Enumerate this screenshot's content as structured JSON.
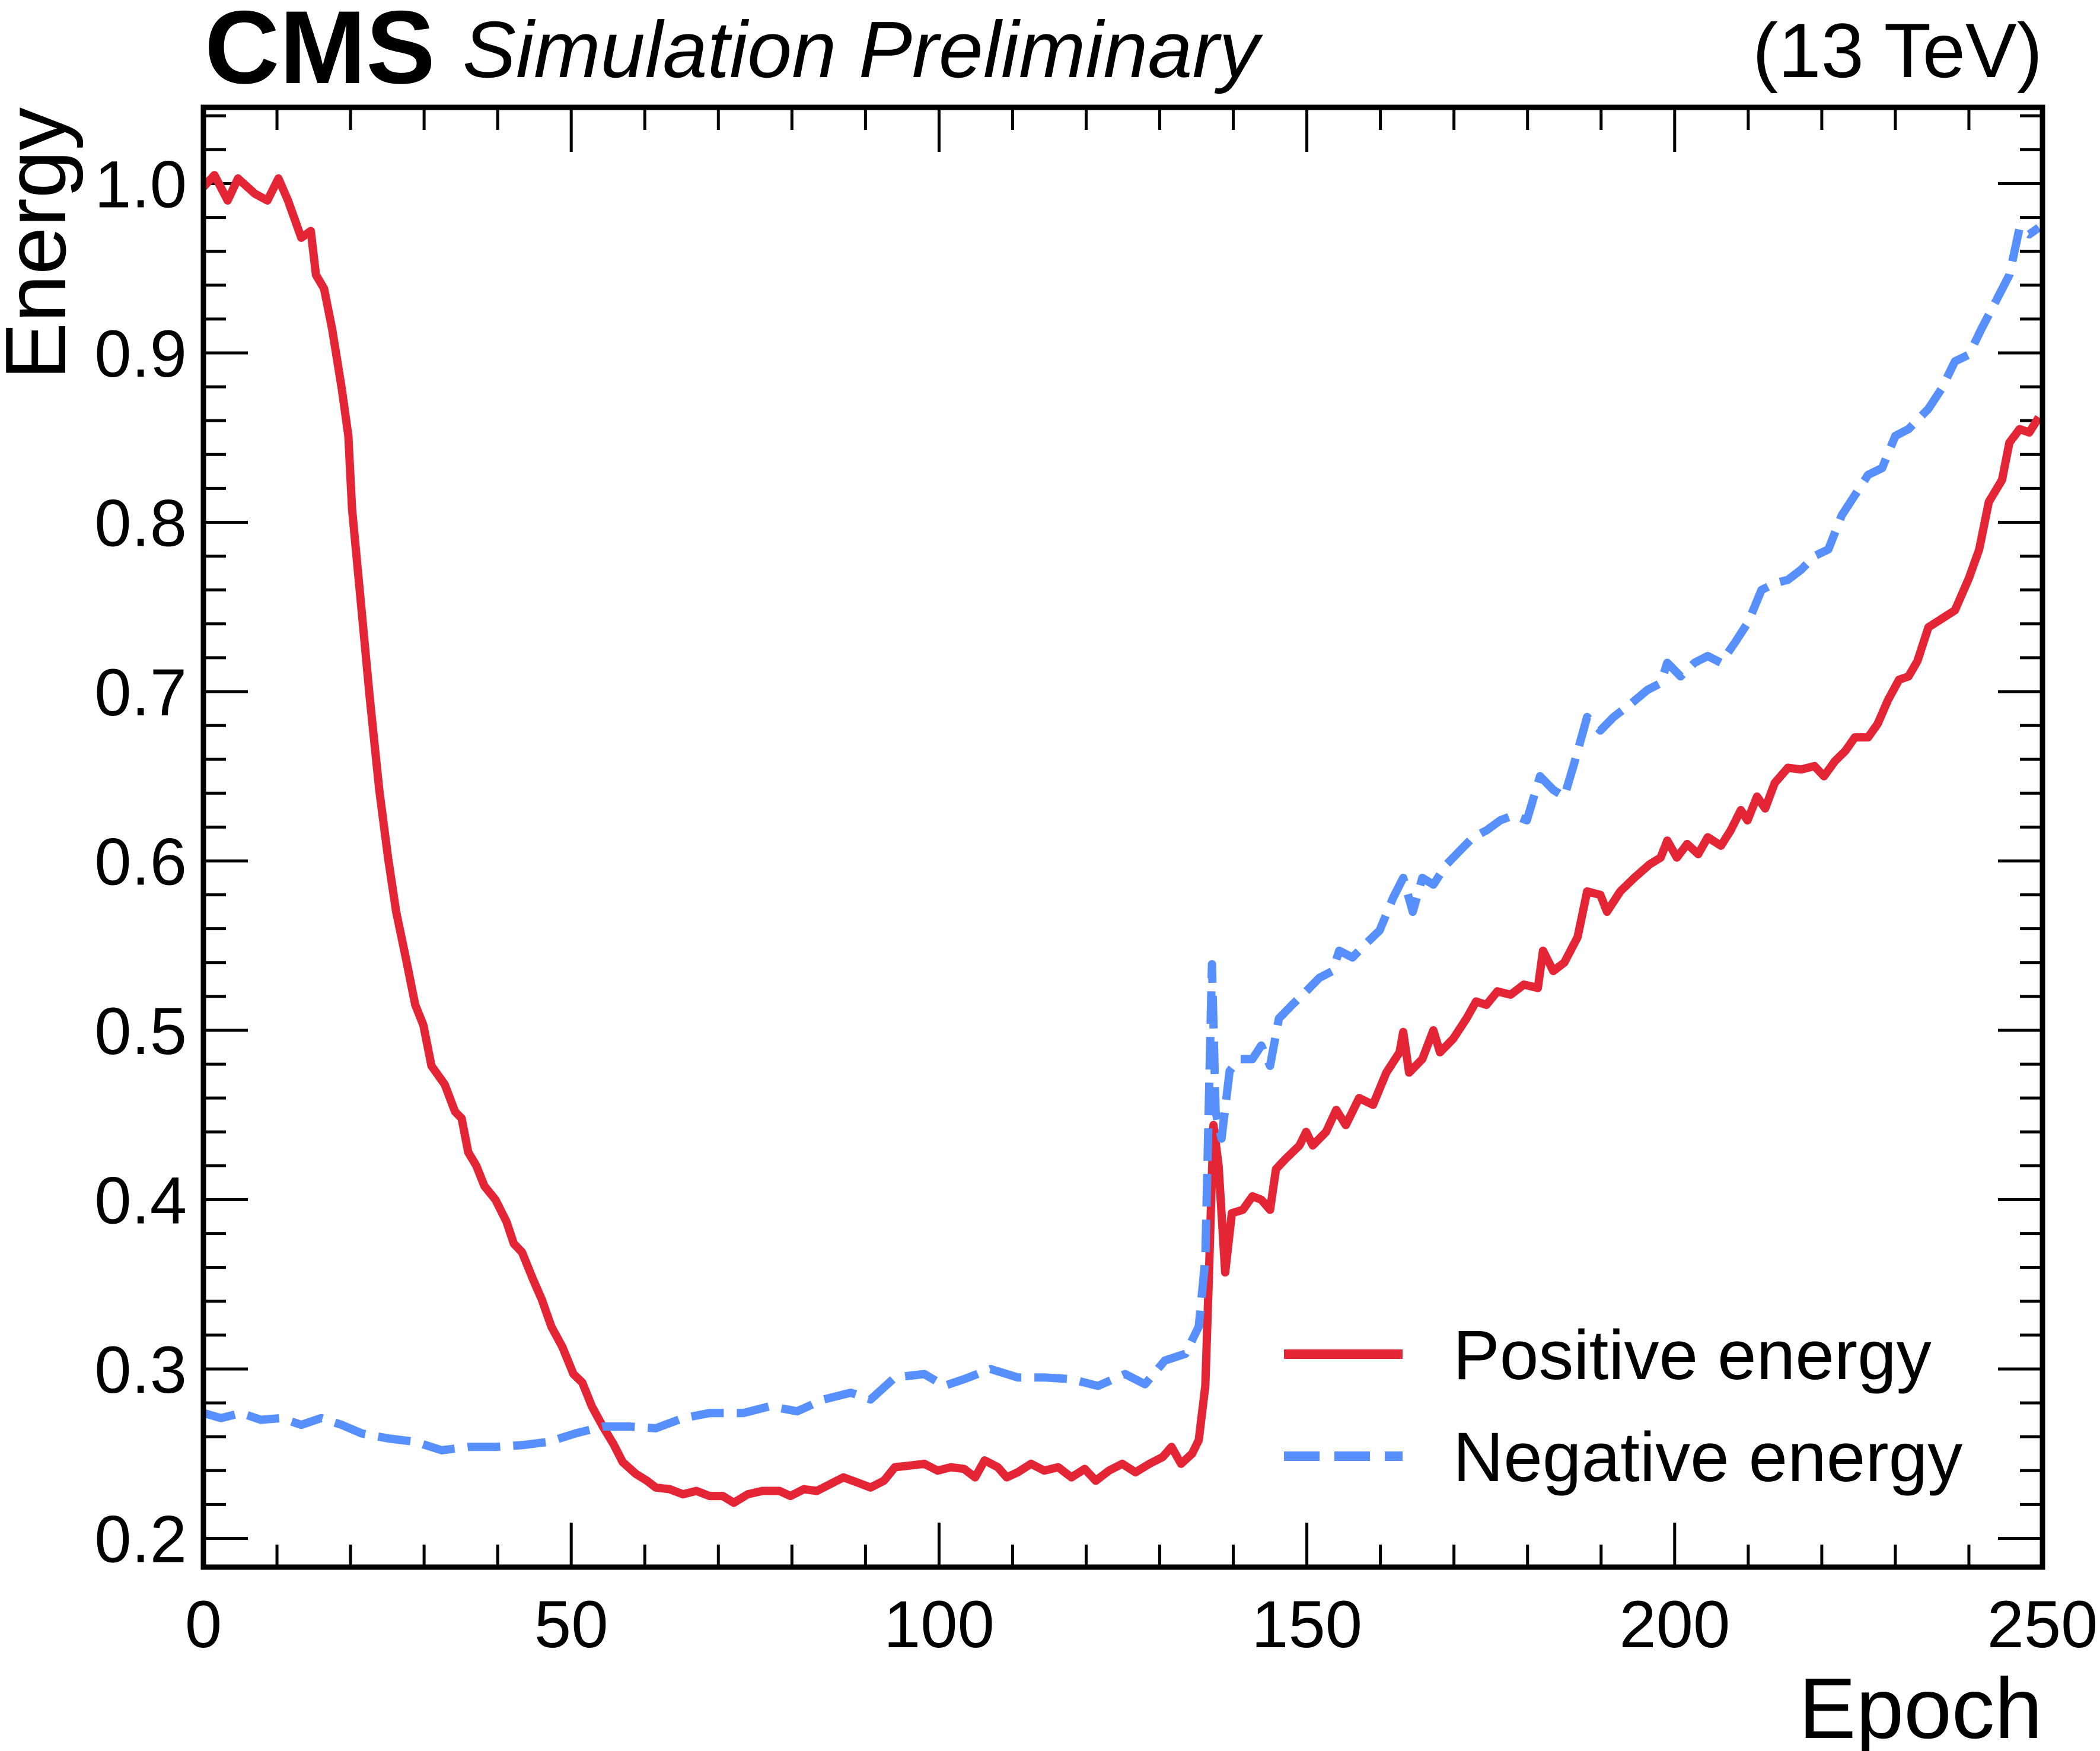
{
  "chart_data": {
    "type": "line",
    "header": {
      "experiment": "CMS",
      "label": "Simulation Preliminary",
      "energy": "(13 TeV)"
    },
    "xlabel": "Epoch",
    "ylabel": "Energy",
    "xlim": [
      0,
      250
    ],
    "ylim": [
      0.183,
      1.045
    ],
    "xticks": [
      0,
      50,
      100,
      150,
      200,
      250
    ],
    "xtick_labels": [
      "0",
      "50",
      "100",
      "150",
      "200",
      "250"
    ],
    "yticks": [
      0.2,
      0.3,
      0.4,
      0.5,
      0.6,
      0.7,
      0.8,
      0.9,
      1.0
    ],
    "ytick_labels": [
      "0.2",
      "0.3",
      "0.4",
      "0.5",
      "0.6",
      "0.7",
      "0.8",
      "0.9",
      "1.0"
    ],
    "grid": false,
    "legend_position": "bottom-right",
    "series": [
      {
        "name": "Positive energy",
        "color": "#e42536",
        "style": "solid",
        "x": [
          0,
          1.5,
          3.3,
          4.7,
          7,
          8.7,
          10.2,
          11.5,
          13.3,
          14.6,
          15.3,
          16.4,
          17.5,
          18.8,
          19.7,
          20.2,
          21.5,
          22.6,
          23.9,
          25.1,
          26.2,
          27.5,
          28.8,
          29.9,
          31,
          32.8,
          34.2,
          35.1,
          36,
          37.1,
          38.2,
          39.7,
          41.2,
          42.2,
          43.3,
          44.8,
          46,
          47.3,
          48.8,
          50.3,
          51.5,
          52.8,
          54.3,
          55.7,
          57,
          58.8,
          60.3,
          61.5,
          63.4,
          65.2,
          67,
          68.8,
          70.6,
          72.1,
          74,
          76,
          78.3,
          79.8,
          81.6,
          83.4,
          85.2,
          87,
          88.9,
          90.7,
          92.5,
          94,
          96.1,
          98,
          99.8,
          101.6,
          103.4,
          104.9,
          106.2,
          108,
          109.2,
          110.7,
          112.5,
          114.3,
          116.2,
          118,
          119.8,
          121.3,
          123.1,
          124.9,
          126.7,
          128.6,
          130.4,
          131.6,
          132.9,
          134.4,
          135.3,
          136.2,
          136.7,
          137.3,
          138,
          138.9,
          139.8,
          141.3,
          142.6,
          143.8,
          145,
          145.8,
          147.1,
          149,
          149.9,
          150.8,
          152.6,
          154,
          155.3,
          157.1,
          159,
          160.8,
          162.6,
          163.1,
          163.9,
          165.7,
          167.2,
          168.1,
          169.9,
          171.7,
          173,
          174.4,
          175.9,
          177.7,
          179.5,
          181.4,
          182.1,
          183.5,
          185,
          186.8,
          188.1,
          189.9,
          190.8,
          192.6,
          194.5,
          196.6,
          198.1,
          199,
          200.3,
          201.7,
          203.2,
          204.5,
          206.3,
          207.6,
          209,
          209.9,
          211.2,
          212.3,
          213.6,
          215.4,
          217.2,
          219,
          220.3,
          221.8,
          223.2,
          224.5,
          226.3,
          227.6,
          229,
          230.5,
          231.8,
          233,
          234.5,
          236.3,
          238.1,
          240,
          241.4,
          242.7,
          244.5,
          245.5,
          246.9,
          248.2,
          249.5
        ],
        "y": [
          0.998,
          1.005,
          0.99,
          1.003,
          0.994,
          0.99,
          1.003,
          0.99,
          0.968,
          0.972,
          0.946,
          0.938,
          0.914,
          0.879,
          0.851,
          0.808,
          0.748,
          0.697,
          0.642,
          0.602,
          0.57,
          0.543,
          0.515,
          0.503,
          0.479,
          0.468,
          0.452,
          0.448,
          0.428,
          0.42,
          0.408,
          0.4,
          0.387,
          0.374,
          0.369,
          0.353,
          0.341,
          0.325,
          0.313,
          0.297,
          0.292,
          0.278,
          0.266,
          0.256,
          0.245,
          0.238,
          0.234,
          0.23,
          0.229,
          0.226,
          0.228,
          0.225,
          0.225,
          0.221,
          0.226,
          0.228,
          0.228,
          0.225,
          0.229,
          0.228,
          0.232,
          0.236,
          0.233,
          0.23,
          0.234,
          0.242,
          0.243,
          0.244,
          0.24,
          0.242,
          0.241,
          0.236,
          0.246,
          0.242,
          0.236,
          0.239,
          0.244,
          0.24,
          0.242,
          0.236,
          0.241,
          0.234,
          0.24,
          0.244,
          0.239,
          0.244,
          0.248,
          0.254,
          0.244,
          0.25,
          0.258,
          0.29,
          0.357,
          0.444,
          0.42,
          0.357,
          0.392,
          0.394,
          0.402,
          0.4,
          0.394,
          0.418,
          0.424,
          0.432,
          0.44,
          0.432,
          0.44,
          0.453,
          0.444,
          0.46,
          0.456,
          0.475,
          0.487,
          0.499,
          0.475,
          0.483,
          0.5,
          0.487,
          0.495,
          0.507,
          0.517,
          0.515,
          0.523,
          0.521,
          0.527,
          0.525,
          0.547,
          0.535,
          0.54,
          0.555,
          0.582,
          0.58,
          0.57,
          0.582,
          0.59,
          0.598,
          0.602,
          0.612,
          0.602,
          0.61,
          0.604,
          0.614,
          0.609,
          0.618,
          0.63,
          0.624,
          0.638,
          0.631,
          0.646,
          0.655,
          0.654,
          0.656,
          0.65,
          0.659,
          0.665,
          0.673,
          0.673,
          0.681,
          0.695,
          0.707,
          0.709,
          0.718,
          0.738,
          0.743,
          0.748,
          0.767,
          0.784,
          0.812,
          0.825,
          0.847,
          0.855,
          0.853,
          0.862
        ]
      },
      {
        "name": "Negative energy",
        "color": "#5790fc",
        "style": "dashed",
        "x": [
          0,
          2.4,
          5.1,
          7.8,
          10.6,
          13.3,
          16,
          18.8,
          21.5,
          25.1,
          28.8,
          32.4,
          36,
          39.7,
          43.3,
          47,
          50.6,
          54.3,
          57.9,
          61.5,
          65.2,
          68.8,
          73.4,
          77,
          80.7,
          84.3,
          88,
          90.7,
          94,
          98,
          100.7,
          103.4,
          107,
          110.7,
          114.3,
          118,
          121.6,
          125.3,
          128,
          130.7,
          133.5,
          135.3,
          136.2,
          137.1,
          137.6,
          138.4,
          139.5,
          140.8,
          142.6,
          143.8,
          145,
          146.2,
          148,
          149.9,
          151.7,
          153.5,
          154.4,
          156.2,
          158,
          159.9,
          161.7,
          163.1,
          164.4,
          165.7,
          167.2,
          169,
          170.8,
          172.6,
          174.4,
          176.3,
          178.1,
          179.9,
          181.7,
          183.5,
          185,
          186.3,
          188.1,
          189.9,
          191.7,
          194.1,
          196.3,
          198.1,
          199,
          200.8,
          202.7,
          204.5,
          206.3,
          208.2,
          210,
          211.8,
          213.6,
          215.4,
          217.2,
          219,
          220.9,
          222.7,
          224.5,
          226.3,
          228.2,
          230,
          231.8,
          234.5,
          236.3,
          238.1,
          240,
          241.8,
          243.6,
          245.5,
          246.9,
          248.2,
          249.5
        ],
        "y": [
          0.274,
          0.271,
          0.274,
          0.27,
          0.271,
          0.267,
          0.271,
          0.267,
          0.262,
          0.259,
          0.257,
          0.252,
          0.254,
          0.254,
          0.255,
          0.257,
          0.262,
          0.266,
          0.266,
          0.265,
          0.271,
          0.274,
          0.274,
          0.278,
          0.275,
          0.282,
          0.286,
          0.282,
          0.295,
          0.297,
          0.29,
          0.294,
          0.3,
          0.295,
          0.295,
          0.294,
          0.29,
          0.297,
          0.291,
          0.305,
          0.309,
          0.325,
          0.365,
          0.539,
          0.452,
          0.436,
          0.476,
          0.483,
          0.483,
          0.491,
          0.479,
          0.507,
          0.515,
          0.523,
          0.531,
          0.535,
          0.547,
          0.543,
          0.551,
          0.559,
          0.578,
          0.59,
          0.57,
          0.59,
          0.586,
          0.598,
          0.606,
          0.614,
          0.618,
          0.624,
          0.627,
          0.624,
          0.65,
          0.642,
          0.638,
          0.657,
          0.685,
          0.677,
          0.685,
          0.693,
          0.701,
          0.705,
          0.717,
          0.709,
          0.717,
          0.721,
          0.717,
          0.729,
          0.741,
          0.76,
          0.764,
          0.766,
          0.772,
          0.78,
          0.784,
          0.804,
          0.816,
          0.828,
          0.832,
          0.851,
          0.855,
          0.867,
          0.879,
          0.895,
          0.899,
          0.915,
          0.93,
          0.946,
          0.974,
          0.97,
          0.974
        ]
      }
    ]
  }
}
